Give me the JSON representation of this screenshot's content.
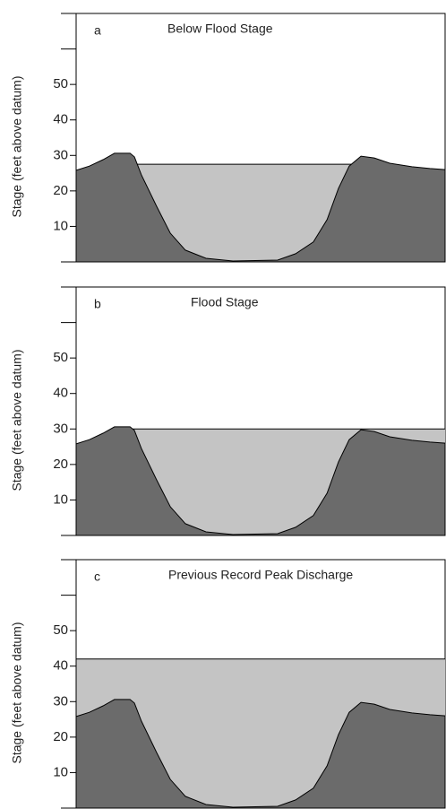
{
  "chart_data": [
    {
      "type": "cross-section",
      "panel": "a",
      "title": "Below Flood Stage",
      "y_label": "Stage (feet above datum)",
      "water_level": 27.5,
      "ylim": [
        0,
        70
      ],
      "yticks": [
        10,
        20,
        30,
        40,
        50
      ],
      "minor_yticks": [
        0,
        60,
        70
      ]
    },
    {
      "type": "cross-section",
      "panel": "b",
      "title": "Flood Stage",
      "y_label": "Stage (feet above datum)",
      "water_level": 30,
      "ylim": [
        0,
        70
      ],
      "yticks": [
        10,
        20,
        30,
        40,
        50
      ],
      "minor_yticks": [
        0,
        60,
        70
      ]
    },
    {
      "type": "cross-section",
      "panel": "c",
      "title": "Previous Record Peak Discharge",
      "y_label": "Stage (feet above datum)",
      "water_level": 42,
      "ylim": [
        0,
        70
      ],
      "yticks": [
        10,
        20,
        30,
        40,
        50
      ],
      "minor_yticks": [
        0,
        60,
        70
      ]
    }
  ]
}
